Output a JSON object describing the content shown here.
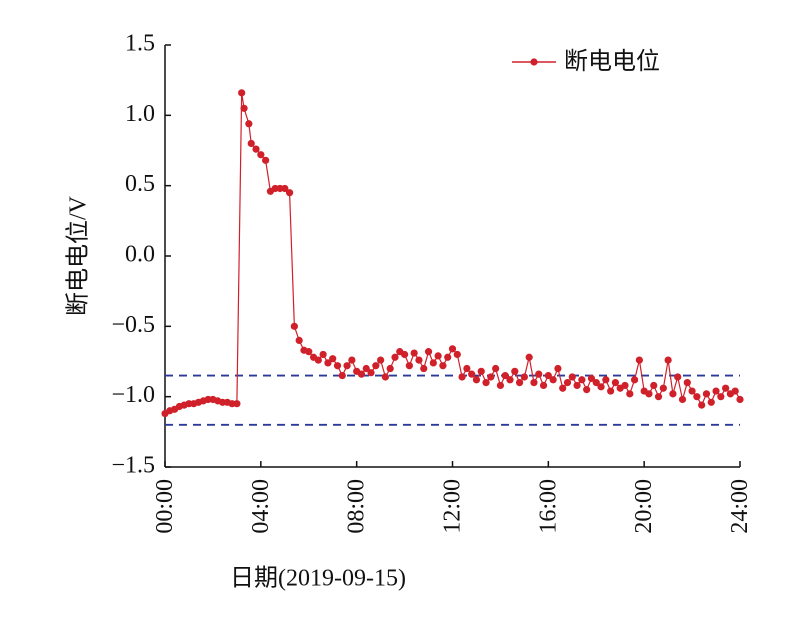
{
  "chart_data": {
    "type": "line",
    "xlabel": "日期(2019-09-15)",
    "ylabel": "断电电位/V",
    "xlim": [
      0,
      24
    ],
    "ylim": [
      -1.5,
      1.5
    ],
    "xticks": [
      {
        "value": 0,
        "label": "00:00"
      },
      {
        "value": 4,
        "label": "04:00"
      },
      {
        "value": 8,
        "label": "08:00"
      },
      {
        "value": 12,
        "label": "12:00"
      },
      {
        "value": 16,
        "label": "16:00"
      },
      {
        "value": 20,
        "label": "20:00"
      },
      {
        "value": 24,
        "label": "24:00"
      }
    ],
    "yticks": [
      {
        "value": 1.5,
        "label": "1.5"
      },
      {
        "value": 1.0,
        "label": "1.0"
      },
      {
        "value": 0.5,
        "label": "0.5"
      },
      {
        "value": 0.0,
        "label": "0.0"
      },
      {
        "value": -0.5,
        "label": "−0.5"
      },
      {
        "value": -1.0,
        "label": "−1.0"
      },
      {
        "value": -1.5,
        "label": "−1.5"
      }
    ],
    "legend": "upper right",
    "reference_lines": {
      "color": "#2b3a9a",
      "values": [
        -0.85,
        -1.2
      ]
    },
    "x": [
      0,
      0.2,
      0.4,
      0.6,
      0.8,
      1.0,
      1.2,
      1.4,
      1.6,
      1.8,
      2.0,
      2.2,
      2.4,
      2.6,
      2.8,
      3.0,
      3.2,
      3.3,
      3.5,
      3.6,
      3.8,
      4.0,
      4.2,
      4.4,
      4.6,
      4.8,
      5.0,
      5.2,
      5.4,
      5.6,
      5.8,
      6.0,
      6.2,
      6.4,
      6.6,
      6.8,
      7.0,
      7.2,
      7.4,
      7.6,
      7.8,
      8.0,
      8.2,
      8.4,
      8.6,
      8.8,
      9.0,
      9.2,
      9.4,
      9.6,
      9.8,
      10.0,
      10.2,
      10.4,
      10.6,
      10.8,
      11.0,
      11.2,
      11.4,
      11.6,
      11.8,
      12.0,
      12.2,
      12.4,
      12.6,
      12.8,
      13.0,
      13.2,
      13.4,
      13.6,
      13.8,
      14.0,
      14.2,
      14.4,
      14.6,
      14.8,
      15.0,
      15.2,
      15.4,
      15.6,
      15.8,
      16.0,
      16.2,
      16.4,
      16.6,
      16.8,
      17.0,
      17.2,
      17.4,
      17.6,
      17.8,
      18.0,
      18.2,
      18.4,
      18.6,
      18.8,
      19.0,
      19.2,
      19.4,
      19.6,
      19.8,
      20.0,
      20.2,
      20.4,
      20.6,
      20.8,
      21.0,
      21.2,
      21.4,
      21.6,
      21.8,
      22.0,
      22.2,
      22.4,
      22.6,
      22.8,
      23.0,
      23.2,
      23.4,
      23.6,
      23.8,
      24.0
    ],
    "series": [
      {
        "name": "断电电位",
        "color": "#d0202a",
        "values": [
          -1.12,
          -1.1,
          -1.09,
          -1.07,
          -1.06,
          -1.05,
          -1.05,
          -1.04,
          -1.03,
          -1.02,
          -1.02,
          -1.03,
          -1.04,
          -1.04,
          -1.05,
          -1.05,
          1.16,
          1.05,
          0.94,
          0.8,
          0.76,
          0.72,
          0.68,
          0.46,
          0.48,
          0.48,
          0.48,
          0.45,
          -0.5,
          -0.6,
          -0.67,
          -0.68,
          -0.72,
          -0.74,
          -0.7,
          -0.76,
          -0.73,
          -0.78,
          -0.85,
          -0.78,
          -0.74,
          -0.82,
          -0.84,
          -0.8,
          -0.83,
          -0.78,
          -0.74,
          -0.86,
          -0.8,
          -0.72,
          -0.68,
          -0.7,
          -0.78,
          -0.69,
          -0.74,
          -0.8,
          -0.68,
          -0.76,
          -0.71,
          -0.78,
          -0.72,
          -0.66,
          -0.7,
          -0.86,
          -0.8,
          -0.84,
          -0.88,
          -0.82,
          -0.9,
          -0.86,
          -0.8,
          -0.92,
          -0.85,
          -0.88,
          -0.82,
          -0.9,
          -0.86,
          -0.72,
          -0.9,
          -0.84,
          -0.92,
          -0.85,
          -0.88,
          -0.8,
          -0.94,
          -0.9,
          -0.86,
          -0.92,
          -0.88,
          -0.95,
          -0.87,
          -0.9,
          -0.93,
          -0.88,
          -0.96,
          -0.9,
          -0.94,
          -0.92,
          -0.98,
          -0.88,
          -0.74,
          -0.96,
          -0.98,
          -0.92,
          -1.0,
          -0.94,
          -0.74,
          -0.98,
          -0.86,
          -1.02,
          -0.9,
          -0.96,
          -1.0,
          -1.06,
          -0.98,
          -1.04,
          -0.96,
          -1.0,
          -0.94,
          -0.98,
          -0.96,
          -1.02
        ]
      }
    ]
  }
}
